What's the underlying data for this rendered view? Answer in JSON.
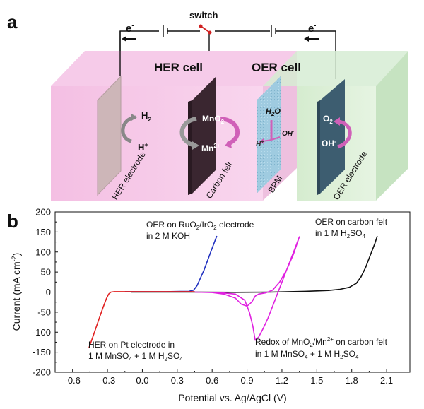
{
  "panel_a": {
    "label": "a",
    "switch_label": "switch",
    "electron_left": "e",
    "electron_right": "e",
    "electron_sup": "-",
    "her_cell": "HER cell",
    "oer_cell": "OER cell",
    "h2": "H",
    "h2_sub": "2",
    "hplus": "H",
    "hplus_sup": "+",
    "mno2": "MnO",
    "mno2_sub": "2",
    "mn2plus": "Mn",
    "mn2plus_sup": "2+",
    "h2o": "H",
    "h2o_sub": "2",
    "h2o_o": "O",
    "bpm_h": "H",
    "bpm_h_sup": "+",
    "bpm_oh": "OH",
    "bpm_oh_sup": "-",
    "o2": "O",
    "o2_sub": "2",
    "oer_oh": "OH",
    "oer_oh_sup": "-",
    "her_electrode": "HER electrode",
    "carbon_felt": "Carbon felt",
    "bpm": "BPM",
    "oer_electrode": "OER electrode",
    "colors": {
      "her_cell": "#f7c8e6",
      "oer_cell": "#cfe9cf",
      "bpm": "#8cc3dc",
      "carbon_felt": "#3d2a33",
      "oer_plate": "#3b5a6e",
      "her_plate": "#c9b3b6",
      "arrow_pink": "#d060b8"
    }
  },
  "panel_b": {
    "label": "b"
  },
  "chart_data": {
    "type": "line",
    "xlabel": "Potential vs. Ag/AgCl (V)",
    "ylabel": "Current (mA cm",
    "ylabel_sup": "-2",
    "ylabel_end": ")",
    "xlim": [
      -0.75,
      2.3
    ],
    "ylim": [
      -200,
      200
    ],
    "xticks": [
      -0.6,
      -0.3,
      0.0,
      0.3,
      0.6,
      0.9,
      1.2,
      1.5,
      1.8,
      2.1
    ],
    "xtick_labels": [
      "-0.6",
      "-0.3",
      "0.0",
      "0.3",
      "0.6",
      "0.9",
      "1.2",
      "1.5",
      "1.8",
      "2.1"
    ],
    "yticks": [
      -200,
      -150,
      -100,
      -50,
      0,
      50,
      100,
      150,
      200
    ],
    "ytick_labels": [
      "-200",
      "-150",
      "-100",
      "-50",
      "0",
      "50",
      "100",
      "150",
      "200"
    ],
    "series": [
      {
        "name": "HER on Pt electrode",
        "color": "#e02020",
        "x": [
          -0.46,
          -0.43,
          -0.4,
          -0.37,
          -0.34,
          -0.31,
          -0.29,
          -0.27,
          -0.24,
          -0.2,
          -0.15,
          -0.1,
          0.0,
          0.2,
          0.45
        ],
        "y": [
          -140,
          -115,
          -90,
          -65,
          -40,
          -17,
          -5,
          0,
          1,
          1,
          1,
          1,
          1,
          1,
          1
        ]
      },
      {
        "name": "OER on RuO2/IrO2 electrode",
        "color": "#2030c0",
        "x": [
          -0.15,
          0.0,
          0.2,
          0.4,
          0.44,
          0.47,
          0.5,
          0.53,
          0.56,
          0.59,
          0.62,
          0.64
        ],
        "y": [
          1,
          1,
          1,
          2,
          5,
          16,
          35,
          55,
          78,
          102,
          125,
          140
        ]
      },
      {
        "name": "Redox of MnO2/Mn2+ on carbon felt",
        "color": "#e020e0",
        "x": [
          0.45,
          0.65,
          0.8,
          0.88,
          0.92,
          0.95,
          0.97,
          1.0,
          1.04,
          1.08,
          1.12,
          1.16,
          1.2,
          1.24,
          1.28,
          1.32,
          1.35,
          1.3,
          1.24,
          1.18,
          1.12,
          1.06,
          1.0,
          0.97,
          0.94,
          0.9,
          0.85,
          0.8,
          0.7,
          0.6,
          0.45
        ],
        "y": [
          0,
          -1,
          -5,
          -20,
          -50,
          -85,
          -120,
          -112,
          -90,
          -65,
          -35,
          -5,
          25,
          55,
          85,
          115,
          138,
          95,
          55,
          25,
          5,
          -2,
          -5,
          -10,
          -25,
          -35,
          -30,
          -15,
          -5,
          -1,
          0
        ]
      },
      {
        "name": "OER on carbon felt",
        "color": "#111111",
        "x": [
          -0.1,
          0.2,
          0.5,
          0.8,
          1.1,
          1.4,
          1.6,
          1.7,
          1.78,
          1.84,
          1.88,
          1.92,
          1.96,
          2.0,
          2.02
        ],
        "y": [
          0,
          0,
          0,
          -0.5,
          0,
          2,
          4,
          7,
          12,
          22,
          38,
          62,
          92,
          122,
          140
        ]
      }
    ],
    "annotations": {
      "ru_line1_a": "OER on RuO",
      "ru_line1_sub1": "2",
      "ru_line1_b": "/IrO",
      "ru_line1_sub2": "2",
      "ru_line1_c": " electrode",
      "ru_line2": "in 2 M KOH",
      "cf_line1": "OER on carbon felt",
      "cf_line2_a": "in 1 M H",
      "cf_line2_sub1": "2",
      "cf_line2_b": "SO",
      "cf_line2_sub2": "4",
      "her_line1": "HER on Pt electrode in",
      "her_line2_a": "1 M MnSO",
      "her_line2_sub1": "4",
      "her_line2_b": " + 1 M H",
      "her_line2_sub2": "2",
      "her_line2_c": "SO",
      "her_line2_sub3": "4",
      "mn_line1_a": "Redox of MnO",
      "mn_line1_sub1": "2",
      "mn_line1_b": "/Mn",
      "mn_line1_sup": "2+",
      "mn_line1_c": " on carbon felt",
      "mn_line2_a": "in 1 M MnSO",
      "mn_line2_sub1": "4",
      "mn_line2_b": " + 1 M H",
      "mn_line2_sub2": "2",
      "mn_line2_c": "SO",
      "mn_line2_sub3": "4"
    }
  }
}
